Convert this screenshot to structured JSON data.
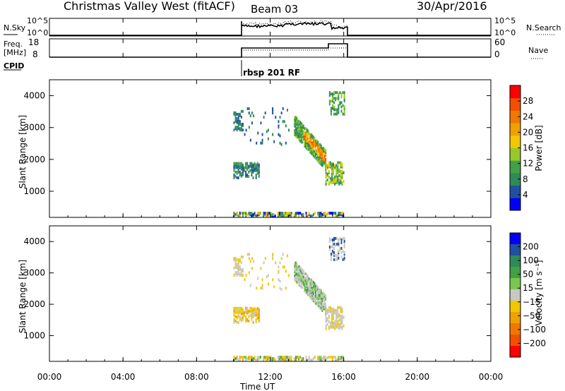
{
  "header": {
    "station": "Christmas Valley West (fitACF)",
    "beam": "Beam 03",
    "date": "30/Apr/2016"
  },
  "nsky_panel": {
    "left_label": "N.Sky",
    "left_ticks": [
      "10^5",
      "10^0"
    ],
    "right_ticks": [
      "10^5",
      "10^0"
    ],
    "right_label": "N.Search"
  },
  "freq_panel": {
    "left_label_top": "Freq.",
    "left_label_bottom": "[MHz]",
    "left_ticks": [
      "18",
      "8"
    ],
    "right_ticks": [
      "60",
      "0"
    ],
    "right_label": "Nave"
  },
  "cpid": {
    "label": "CPID",
    "value": "rbsp 201 RF"
  },
  "chart_data": [
    {
      "type": "heatmap",
      "name": "power",
      "ylabel": "Slant Range [km]",
      "yticks": [
        "1000",
        "2000",
        "3000",
        "4000"
      ],
      "ylim": [
        180,
        4500
      ],
      "colorbar": {
        "label": "Power [dB]",
        "ticks": [
          "4",
          "8",
          "12",
          "16",
          "20",
          "24",
          "28"
        ],
        "colors": [
          "#0000ff",
          "#2050a0",
          "#2e8b57",
          "#44a046",
          "#96c82a",
          "#f0c800",
          "#f0a000",
          "#f07800",
          "#f05000",
          "#ff0000"
        ]
      }
    },
    {
      "type": "heatmap",
      "name": "velocity",
      "ylabel": "Slant Range [km]",
      "yticks": [
        "1000",
        "2000",
        "3000",
        "4000"
      ],
      "ylim": [
        180,
        4500
      ],
      "colorbar": {
        "label": "Velocity [m s⁻¹]",
        "ticks": [
          "200",
          "100",
          "50",
          "15",
          "−15",
          "−50",
          "−100",
          "−200"
        ],
        "colors": [
          "#0000ff",
          "#2050a0",
          "#2e8b57",
          "#44a046",
          "#78c850",
          "#c8c8c0",
          "#f0c800",
          "#f0a000",
          "#f07800",
          "#f05000",
          "#ff0000"
        ]
      }
    }
  ],
  "xaxis": {
    "ticks": [
      "00:00",
      "04:00",
      "08:00",
      "12:00",
      "16:00",
      "20:00",
      "00:00"
    ],
    "label": "Time UT",
    "range_hours": [
      0,
      24
    ]
  }
}
